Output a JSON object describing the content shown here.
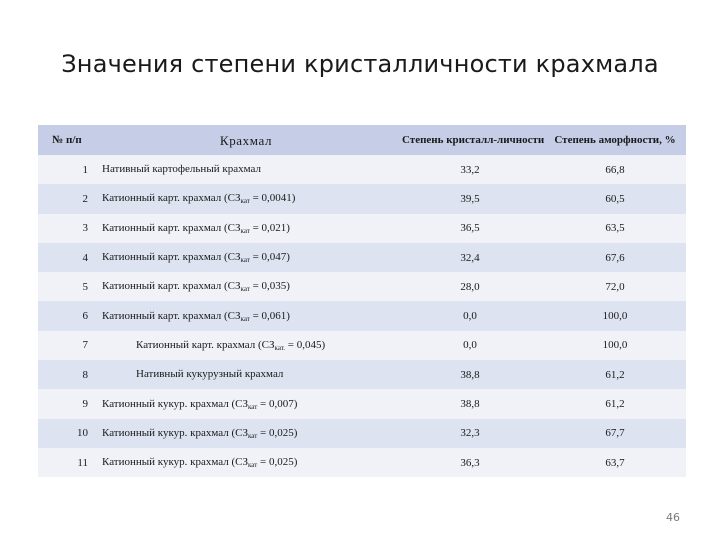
{
  "title": "Значения степени кристалличности крахмала",
  "headers": {
    "num": "№ п/п",
    "name": "Крахмал",
    "cryst": "Степень кристалл-личности, %",
    "amorph": "Степень аморфности, %"
  },
  "rows": [
    {
      "num": "1",
      "name": "Нативный картофельный крахмал",
      "sub": "",
      "after": "",
      "cryst": "33,2",
      "amorph": "66,8"
    },
    {
      "num": "2",
      "name": "Катионный карт. крахмал (СЗ",
      "sub": "кат",
      "after": " = 0,0041)",
      "cryst": "39,5",
      "amorph": "60,5"
    },
    {
      "num": "3",
      "name": "Катионный карт. крахмал (СЗ",
      "sub": "кат",
      "after": " = 0,021)",
      "cryst": "36,5",
      "amorph": "63,5"
    },
    {
      "num": "4",
      "name": "Катионный карт. крахмал (СЗ",
      "sub": "кат",
      "after": " = 0,047)",
      "cryst": "32,4",
      "amorph": "67,6"
    },
    {
      "num": "5",
      "name": "Катионный карт. крахмал (СЗ",
      "sub": "кат",
      "after": " = 0,035)",
      "cryst": "28,0",
      "amorph": "72,0"
    },
    {
      "num": "6",
      "name": "Катионный карт. крахмал (СЗ",
      "sub": "кат",
      "after": " = 0,061)",
      "cryst": "0,0",
      "amorph": "100,0"
    },
    {
      "num": "7",
      "name": "Катионный карт. крахмал (СЗ",
      "sub": "кат.",
      "after": " = 0,045)",
      "cryst": "0,0",
      "amorph": "100,0"
    },
    {
      "num": "8",
      "name": "Нативный кукурузный крахмал",
      "sub": "",
      "after": "",
      "cryst": "38,8",
      "amorph": "61,2"
    },
    {
      "num": "9",
      "name": "Катионный кукур. крахмал (СЗ",
      "sub": "кат",
      "after": " = 0,007)",
      "cryst": "38,8",
      "amorph": "61,2"
    },
    {
      "num": "10",
      "name": "Катионный кукур. крахмал (СЗ",
      "sub": "кат",
      "after": " = 0,025)",
      "cryst": "32,3",
      "amorph": "67,7"
    },
    {
      "num": "11",
      "name": "Катионный кукур. крахмал (СЗ",
      "sub": "кат",
      "after": " = 0,025)",
      "cryst": "36,3",
      "amorph": "63,7"
    }
  ],
  "page_number": "46"
}
